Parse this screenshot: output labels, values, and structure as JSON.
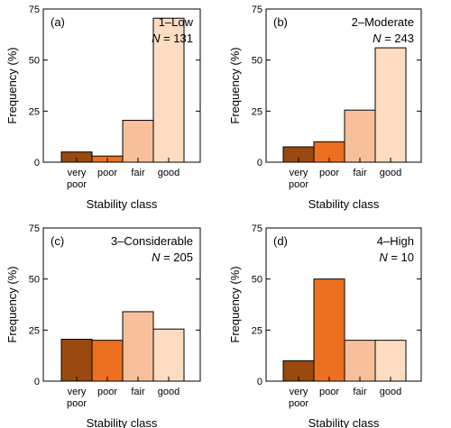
{
  "colors": {
    "very poor": "#9a4a0e",
    "poor": "#ec7020",
    "fair": "#f8c09a",
    "good": "#fddcc2",
    "outline": "#000000"
  },
  "chart_data": [
    {
      "type": "bar",
      "panel_label": "(a)",
      "danger_level": "1–Low",
      "n_prefix": "N",
      "n_value": "= 131",
      "categories": [
        [
          "very",
          "poor"
        ],
        [
          "poor"
        ],
        [
          "fair"
        ],
        [
          "good"
        ]
      ],
      "values": [
        5,
        3,
        20.5,
        70.5
      ],
      "xlabel": "Stability class",
      "ylabel": "Frequency (%)",
      "ylim": [
        0,
        75
      ],
      "yticks": [
        0,
        25,
        50,
        75
      ]
    },
    {
      "type": "bar",
      "panel_label": "(b)",
      "danger_level": "2–Moderate",
      "n_prefix": "N",
      "n_value": "= 243",
      "categories": [
        [
          "very",
          "poor"
        ],
        [
          "poor"
        ],
        [
          "fair"
        ],
        [
          "good"
        ]
      ],
      "values": [
        7.5,
        10,
        25.5,
        56
      ],
      "xlabel": "Stability class",
      "ylabel": "Frequency (%)",
      "ylim": [
        0,
        75
      ],
      "yticks": [
        0,
        25,
        50,
        75
      ]
    },
    {
      "type": "bar",
      "panel_label": "(c)",
      "danger_level": "3–Considerable",
      "n_prefix": "N",
      "n_value": "= 205",
      "categories": [
        [
          "very",
          "poor"
        ],
        [
          "poor"
        ],
        [
          "fair"
        ],
        [
          "good"
        ]
      ],
      "values": [
        20.5,
        20,
        34,
        25.5
      ],
      "xlabel": "Stability class",
      "ylabel": "Frequency (%)",
      "ylim": [
        0,
        75
      ],
      "yticks": [
        0,
        25,
        50,
        75
      ]
    },
    {
      "type": "bar",
      "panel_label": "(d)",
      "danger_level": "4–High",
      "n_prefix": "N",
      "n_value": "= 10",
      "categories": [
        [
          "very",
          "poor"
        ],
        [
          "poor"
        ],
        [
          "fair"
        ],
        [
          "good"
        ]
      ],
      "values": [
        10,
        50,
        20,
        20
      ],
      "xlabel": "Stability class",
      "ylabel": "Frequency (%)",
      "ylim": [
        0,
        75
      ],
      "yticks": [
        0,
        25,
        50,
        75
      ]
    }
  ]
}
